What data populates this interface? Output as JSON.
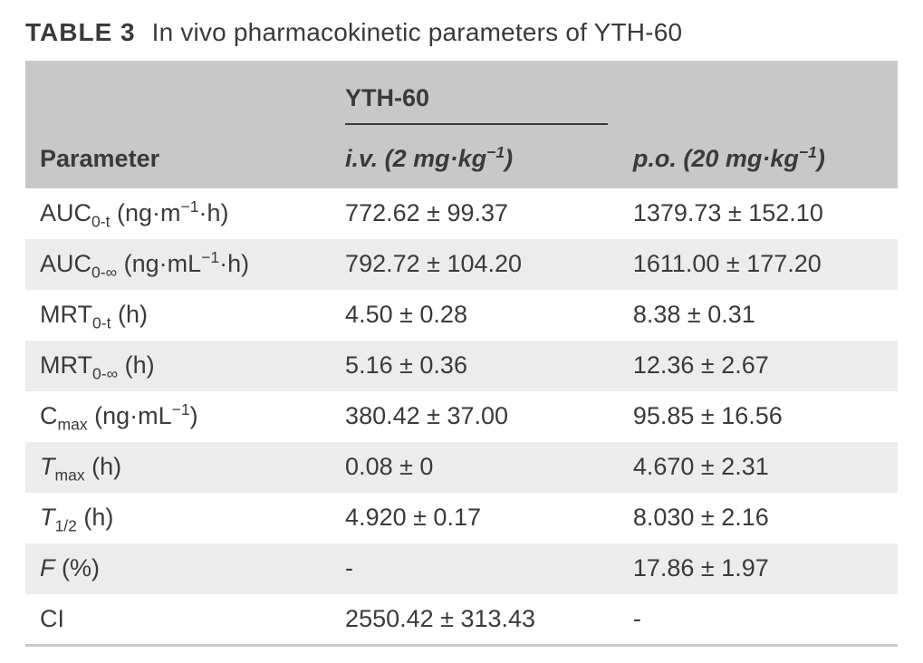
{
  "caption": {
    "label": "TABLE 3",
    "text": "In vivo pharmacokinetic parameters of YTH-60"
  },
  "table": {
    "group_header": "YTH-60",
    "param_header": "Parameter",
    "route_iv_prefix": "i.v.",
    "route_iv_dose": " (2 mg·kg",
    "route_iv_exp": "−1",
    "route_iv_suffix": ")",
    "route_po_prefix": "p.o.",
    "route_po_dose": " (20 mg·kg",
    "route_po_exp": "−1",
    "route_po_suffix": ")",
    "colors": {
      "header_bg": "#c8c8c8",
      "row_odd_bg": "#ffffff",
      "row_even_bg": "#ececec",
      "border": "#c8c8c8",
      "text": "#3a3a3a",
      "rule": "#3a3a3a"
    },
    "font_size_pt": 20,
    "rows": [
      {
        "param_parts": {
          "pre": "AUC",
          "sub": "0-t",
          "mid1": " (ng·m",
          "sup": "−1",
          "mid2": "·h)"
        },
        "iv": "772.62 ± 99.37",
        "po": "1379.73 ± 152.10"
      },
      {
        "param_parts": {
          "pre": "AUC",
          "sub": "0-∞",
          "mid1": " (ng·mL",
          "sup": "−1",
          "mid2": "·h)"
        },
        "iv": "792.72 ± 104.20",
        "po": "1611.00 ± 177.20"
      },
      {
        "param_parts": {
          "pre": "MRT",
          "sub": "0-t",
          "mid1": " (h)",
          "sup": "",
          "mid2": ""
        },
        "iv": "4.50 ± 0.28",
        "po": "8.38 ± 0.31"
      },
      {
        "param_parts": {
          "pre": "MRT",
          "sub": "0-∞",
          "mid1": " (h)",
          "sup": "",
          "mid2": ""
        },
        "iv": "5.16 ± 0.36",
        "po": "12.36 ± 2.67"
      },
      {
        "param_parts": {
          "pre": "C",
          "sub": "max",
          "mid1": " (ng·mL",
          "sup": "−1",
          "mid2": ")"
        },
        "iv": "380.42 ± 37.00",
        "po": "95.85 ± 16.56"
      },
      {
        "param_parts": {
          "preItalic": "T",
          "sub": "max",
          "mid1": " (h)",
          "sup": "",
          "mid2": ""
        },
        "iv": "0.08 ± 0",
        "po": "4.670 ± 2.31"
      },
      {
        "param_parts": {
          "preItalic": "T",
          "sub": "1/2",
          "mid1": " (h)",
          "sup": "",
          "mid2": ""
        },
        "iv": "4.920 ± 0.17",
        "po": "8.030 ± 2.16"
      },
      {
        "param_parts": {
          "preItalic": "F",
          "sub": "",
          "mid1": " (%)",
          "sup": "",
          "mid2": ""
        },
        "iv": "-",
        "po": "17.86 ± 1.97"
      },
      {
        "param_parts": {
          "pre": "CI",
          "sub": "",
          "mid1": "",
          "sup": "",
          "mid2": ""
        },
        "iv": "2550.42 ± 313.43",
        "po": "-"
      }
    ]
  }
}
